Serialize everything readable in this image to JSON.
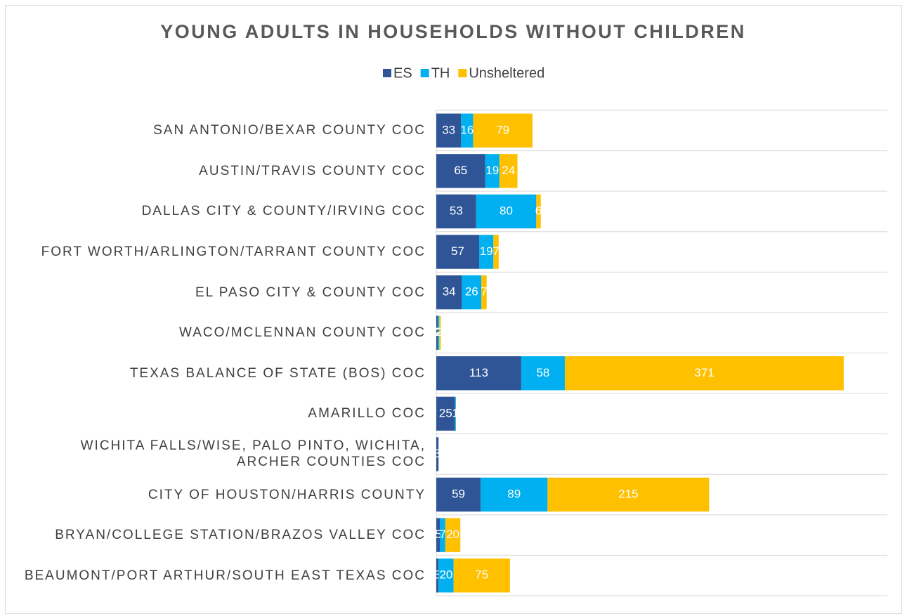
{
  "chart_data": {
    "type": "stacked_bar_horizontal",
    "title": "YOUNG ADULTS IN HOUSEHOLDS WITHOUT CHILDREN",
    "categories": [
      "SAN ANTONIO/BEXAR COUNTY COC",
      "AUSTIN/TRAVIS COUNTY COC",
      "DALLAS CITY & COUNTY/IRVING COC",
      "FORT WORTH/ARLINGTON/TARRANT COUNTY COC",
      "EL PASO CITY & COUNTY COC",
      "WACO/MCLENNAN COUNTY COC",
      "TEXAS BALANCE OF STATE (BOS) COC",
      "AMARILLO COC",
      "WICHITA FALLS/WISE, PALO PINTO, WICHITA, ARCHER COUNTIES COC",
      "CITY OF HOUSTON/HARRIS COUNTY",
      "BRYAN/COLLEGE STATION/BRAZOS VALLEY COC",
      "BEAUMONT/PORT ARTHUR/SOUTH EAST TEXAS COC"
    ],
    "series": [
      {
        "name": "ES",
        "color": "#2f5597",
        "values": [
          33,
          65,
          53,
          57,
          34,
          2,
          113,
          25,
          3,
          59,
          5,
          3
        ]
      },
      {
        "name": "TH",
        "color": "#00b0f0",
        "values": [
          16,
          19,
          80,
          19,
          26,
          2,
          58,
          1,
          0,
          89,
          7,
          20
        ]
      },
      {
        "name": "Unsheltered",
        "color": "#ffc000",
        "values": [
          79,
          24,
          6,
          7,
          7,
          2,
          371,
          0,
          0,
          215,
          20,
          75
        ]
      }
    ],
    "xlim": [
      0,
      600
    ]
  }
}
